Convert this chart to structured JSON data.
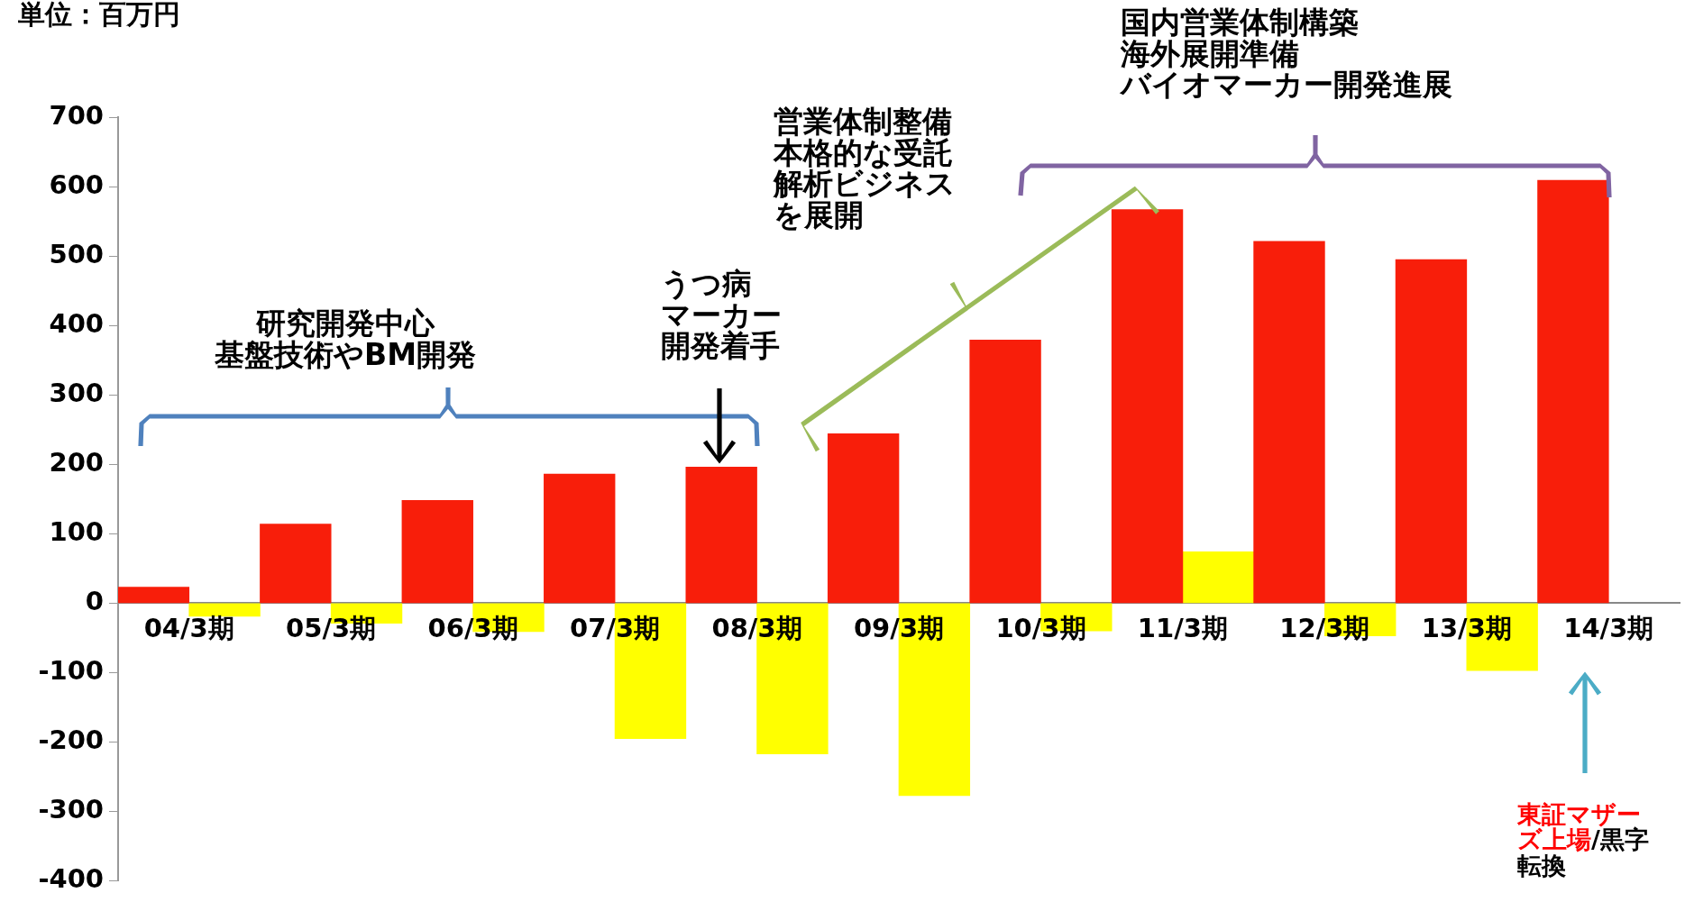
{
  "chart_data": {
    "type": "bar",
    "ylabel": "単位：百万円",
    "categories": [
      "04/3期",
      "05/3期",
      "06/3期",
      "07/3期",
      "08/3期",
      "09/3期",
      "10/3期",
      "11/3期",
      "12/3期",
      "13/3期",
      "14/3期"
    ],
    "series": [
      {
        "color": "#f81e0a",
        "values": [
          23,
          114,
          148,
          186,
          196,
          244,
          379,
          567,
          521,
          495,
          609
        ]
      },
      {
        "color": "#ffff00",
        "values": [
          -19,
          -29,
          -41,
          -195,
          -217,
          -277,
          -40,
          74,
          -47,
          -97,
          null
        ]
      }
    ],
    "ylim": [
      -400,
      700
    ],
    "yticks": [
      -400,
      -300,
      -200,
      -100,
      0,
      100,
      200,
      300,
      400,
      500,
      600,
      700
    ],
    "grid": false,
    "legend": false,
    "annotations": [
      "研究開発中心基盤技術やBM開発",
      "うつ病マーカー開発着手",
      "営業体制整備本格的な受託解析ビジネスを展開",
      "国内営業体制構築海外展開準備バイオマーカー開発進展",
      "東証マザーズ上場",
      "/黒字転換"
    ]
  }
}
